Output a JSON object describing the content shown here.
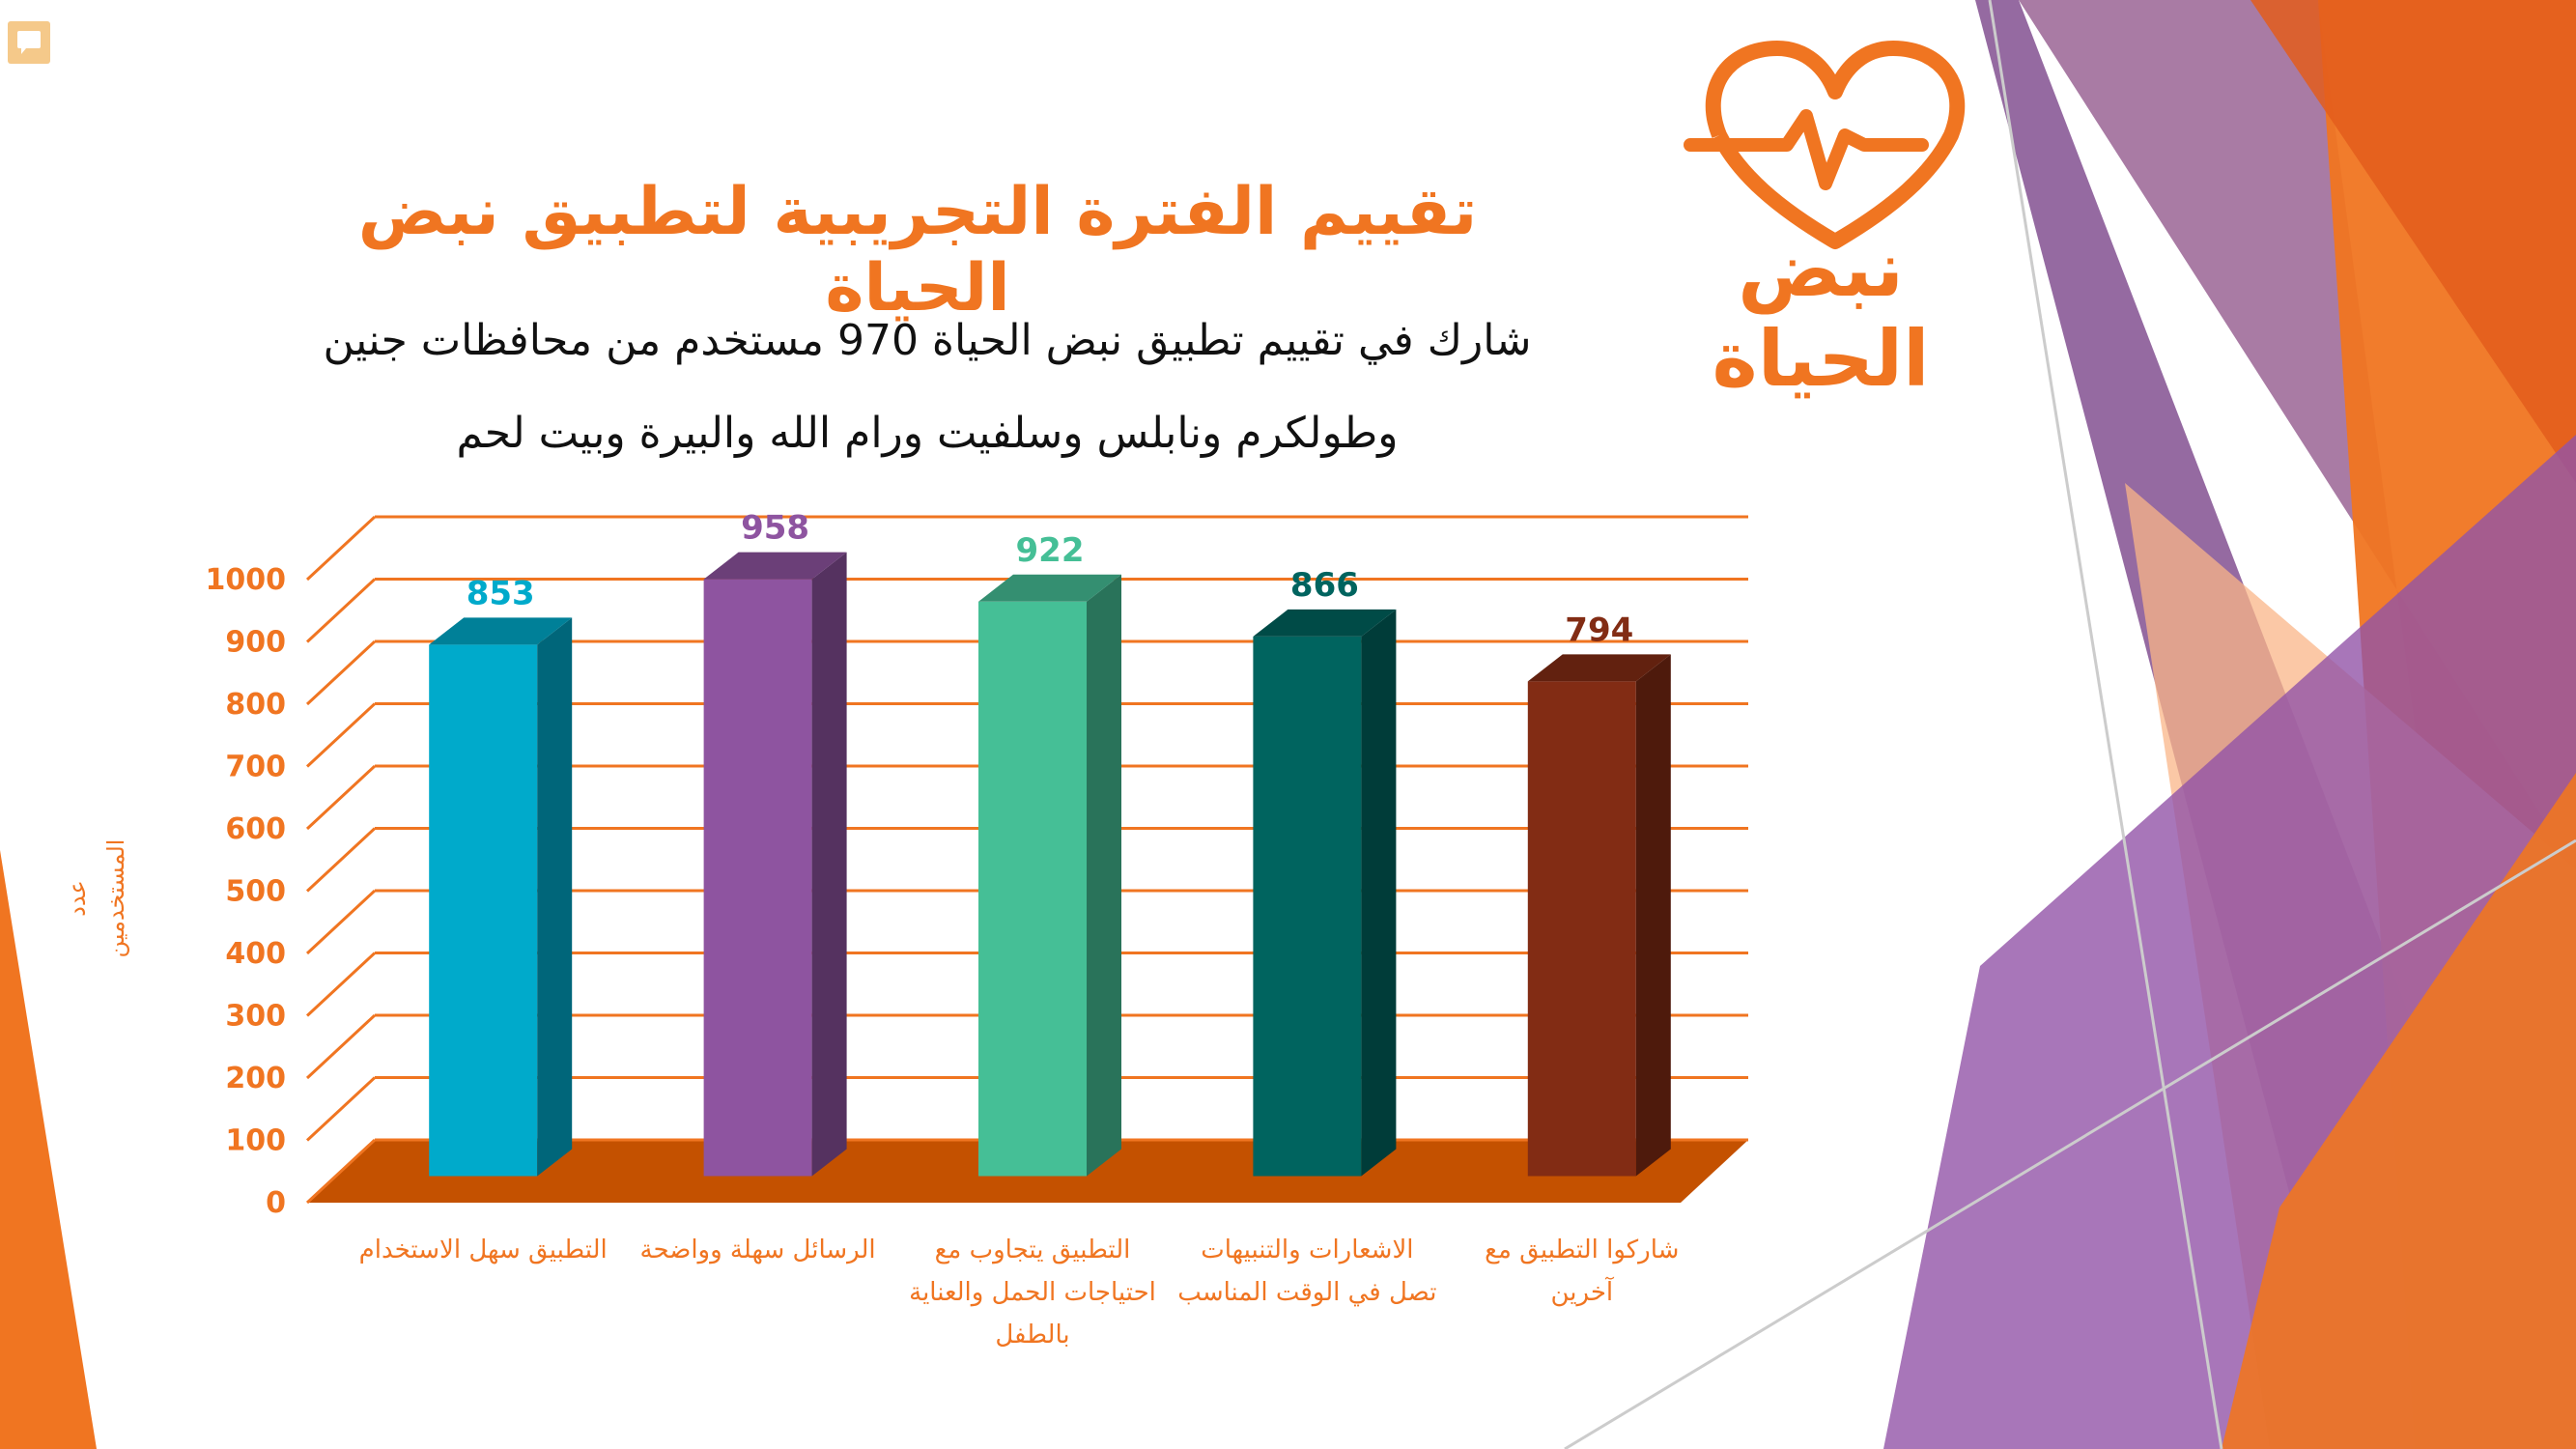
{
  "slide": {
    "title": "تقييم الفترة التجريبية لتطبيق نبض الحياة",
    "subtitle_line1": "شارك في تقييم تطبيق نبض الحياة 970 مستخدم من محافظات جنين",
    "subtitle_line2": "وطولكرم ونابلس وسلفيت ورام الله والبيرة وبيت لحم",
    "logo_text": "نبض الحياة",
    "icons": [
      "comment-icon",
      "heartbeat-logo-icon"
    ]
  },
  "chart_data": {
    "type": "bar",
    "title": "",
    "xlabel": "",
    "ylabel": "عدد المستخدمين",
    "ylim": [
      0,
      1000
    ],
    "yticks": [
      0,
      100,
      200,
      300,
      400,
      500,
      600,
      700,
      800,
      900,
      1000
    ],
    "categories": [
      "التطبيق سهل الاستخدام",
      "الرسائل سهلة وواضحة",
      "التطبيق يتجاوب مع احتياجات الحمل والعناية بالطفل",
      "الاشعارات والتنبيهات تصل في الوقت المناسب",
      "شاركوا التطبيق مع آخرين"
    ],
    "values": [
      853,
      958,
      922,
      866,
      794
    ],
    "colors": [
      "#00aacb",
      "#8e54a0",
      "#45bf96",
      "#00645f",
      "#822c14"
    ],
    "grid": true,
    "legend": "none",
    "style": "3d"
  },
  "colors": {
    "accent": "#f07521",
    "floor": "#c45100",
    "purple": "#8a5a97"
  }
}
